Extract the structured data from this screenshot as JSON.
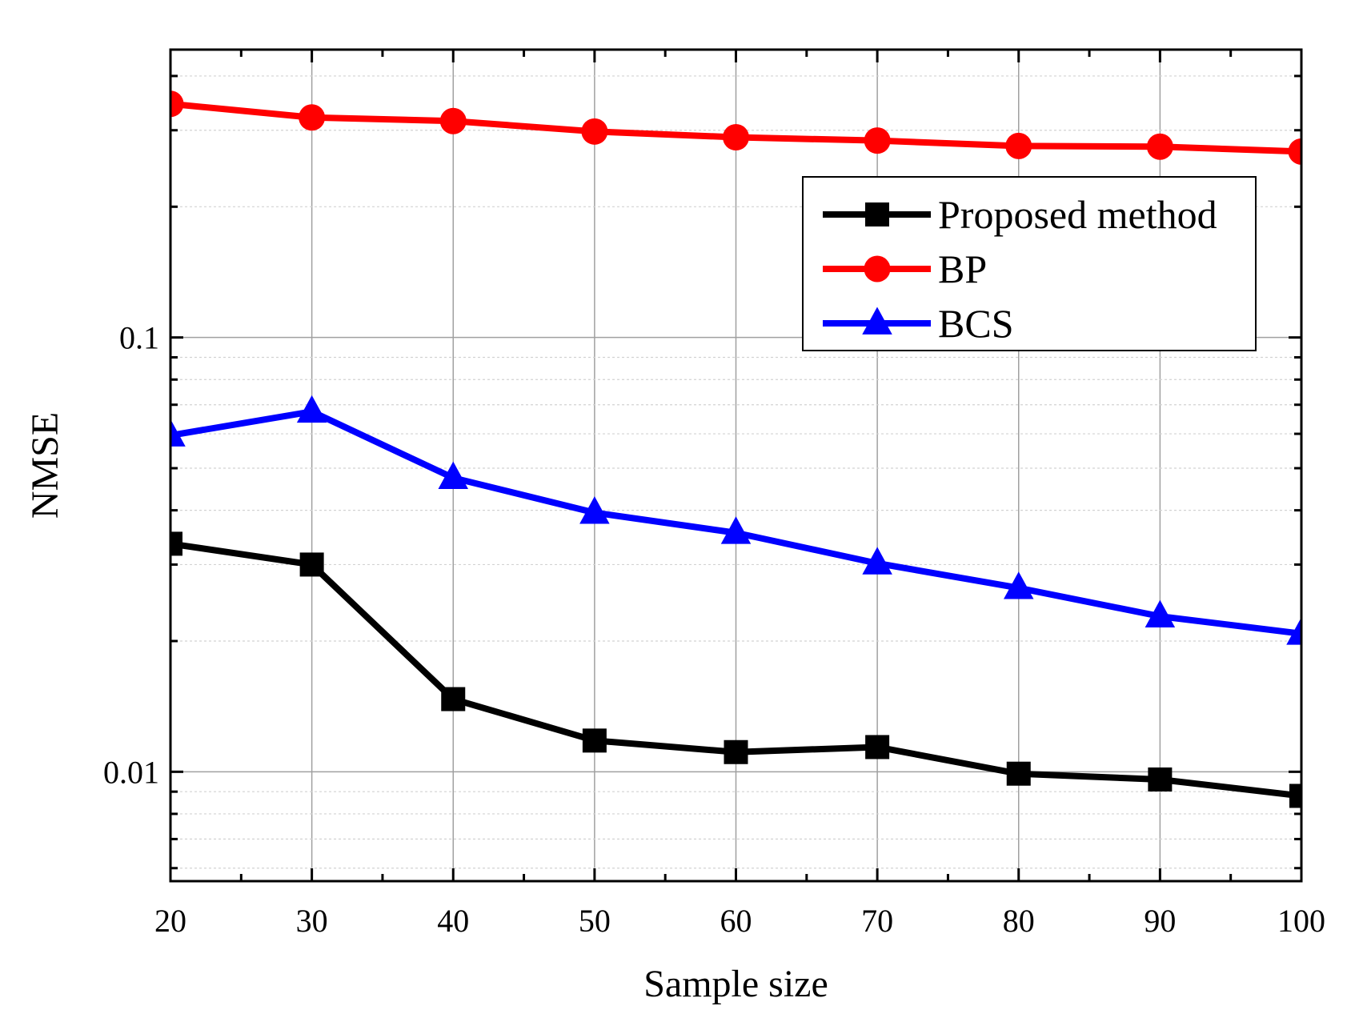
{
  "chart_data": {
    "type": "line",
    "title": "",
    "xlabel": "Sample size",
    "ylabel": "NMSE",
    "yscale": "log",
    "xlim": [
      20,
      100
    ],
    "ylim": [
      0.0056,
      0.46
    ],
    "grid": true,
    "legend_position": "top-right",
    "x": [
      20,
      30,
      40,
      50,
      60,
      70,
      80,
      90,
      100
    ],
    "x_ticks": [
      "20",
      "30",
      "40",
      "50",
      "60",
      "70",
      "80",
      "90",
      "100"
    ],
    "y_ticks": [
      {
        "value": 0.1,
        "label": "0.1"
      },
      {
        "value": 0.01,
        "label": "0.01"
      }
    ],
    "series": [
      {
        "name": "Proposed method",
        "color": "#000000",
        "marker": "square",
        "values": [
          0.0335,
          0.03,
          0.0147,
          0.0118,
          0.0111,
          0.0114,
          0.0099,
          0.0096,
          0.0088
        ]
      },
      {
        "name": "BP",
        "color": "#ff0000",
        "marker": "circle",
        "values": [
          0.345,
          0.321,
          0.315,
          0.298,
          0.289,
          0.284,
          0.276,
          0.275,
          0.268
        ]
      },
      {
        "name": "BCS",
        "color": "#0000ff",
        "marker": "triangle",
        "values": [
          0.0595,
          0.0675,
          0.0475,
          0.0395,
          0.0355,
          0.0302,
          0.0265,
          0.0228,
          0.0208
        ]
      }
    ]
  }
}
